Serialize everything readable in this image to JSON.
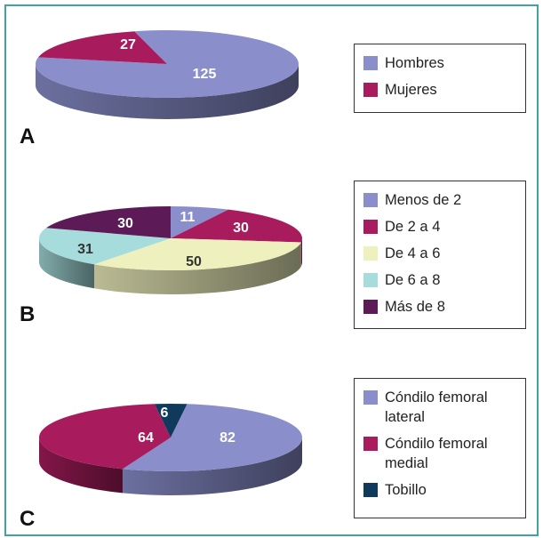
{
  "colors": {
    "frame": "#3fa3a6"
  },
  "chart_data": [
    {
      "type": "pie",
      "panel": "A",
      "legend_position": "right",
      "slices": [
        {
          "label": "Hombres",
          "value": 125,
          "color": "#8a8fcc",
          "label_color": "#ffffff"
        },
        {
          "label": "Mujeres",
          "value": 27,
          "color": "#a81c5e",
          "label_color": "#ffffff"
        }
      ]
    },
    {
      "type": "pie",
      "panel": "B",
      "legend_position": "right",
      "slices": [
        {
          "label": "Menos de 2",
          "value": 11,
          "color": "#8a8fcc",
          "label_color": "#ffffff"
        },
        {
          "label": "De 2 a 4",
          "value": 30,
          "color": "#a81c5e",
          "label_color": "#ffffff"
        },
        {
          "label": "De 4 a 6",
          "value": 50,
          "color": "#eef0bd",
          "label_color": "#333333"
        },
        {
          "label": "De 6 a 8",
          "value": 31,
          "color": "#a7dcdd",
          "label_color": "#333333"
        },
        {
          "label": "Más de 8",
          "value": 30,
          "color": "#5c1a57",
          "label_color": "#ffffff"
        }
      ]
    },
    {
      "type": "pie",
      "panel": "C",
      "legend_position": "right",
      "slices": [
        {
          "label": "Cóndilo femoral lateral",
          "value": 82,
          "color": "#8a8fcc",
          "label_color": "#ffffff"
        },
        {
          "label": "Cóndilo femoral medial",
          "value": 64,
          "color": "#a81c5e",
          "label_color": "#ffffff"
        },
        {
          "label": "Tobillo",
          "value": 6,
          "color": "#103a5c",
          "label_color": "#ffffff"
        }
      ]
    }
  ]
}
